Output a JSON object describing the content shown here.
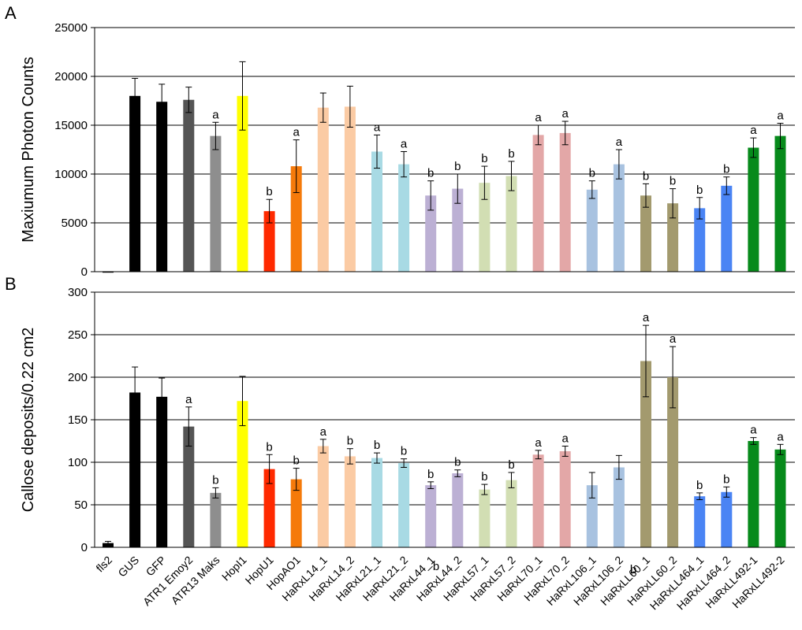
{
  "chart_data": [
    {
      "type": "bar",
      "panel_label": "A",
      "ylabel": "Maxiumum Photon Counts",
      "ylim": [
        0,
        25000
      ],
      "yticks": [
        "0",
        "5000",
        "10000",
        "15000",
        "20000",
        "25000"
      ],
      "grid": true,
      "categories": [
        "fls2",
        "GUS",
        "GFP",
        "ATR1 Emoy2",
        "ATR13 Maks",
        "HopI1",
        "HopU1",
        "HopAO1",
        "HaRxL14_1",
        "HaRxL14_2",
        "HaRxL21_1",
        "HaRxL21_2",
        "HaRxL44_1",
        "HaRxL44_2",
        "HaRxL57_1",
        "HaRxL57_2",
        "HaRxL70_1",
        "HaRxL70_2",
        "HaRxL106_1",
        "HaRxL106_2",
        "HaRxLL60_1",
        "HaRxLL60_2",
        "HaRxLL464_1",
        "HaRxLL464_2",
        "HaRxLL492-1",
        "HaRxLL492-2"
      ],
      "values": [
        0,
        18000,
        17400,
        17600,
        13900,
        18000,
        6200,
        10800,
        16800,
        16900,
        12300,
        11000,
        7800,
        8500,
        9100,
        9800,
        14000,
        14200,
        8400,
        11000,
        7800,
        7000,
        6500,
        8800,
        12700,
        13900
      ],
      "errors": [
        0,
        1800,
        1800,
        1300,
        1400,
        3500,
        1200,
        2700,
        1500,
        2100,
        1700,
        1300,
        1500,
        1500,
        1700,
        1500,
        1000,
        1200,
        900,
        1500,
        1200,
        1500,
        1100,
        900,
        1000,
        1300
      ],
      "labels": [
        "",
        "",
        "",
        "",
        "a",
        "",
        "b",
        "a",
        "",
        "",
        "a",
        "a",
        "b",
        "b",
        "b",
        "b",
        "a",
        "a",
        "b",
        "a",
        "b",
        "b",
        "b",
        "b",
        "a",
        "a"
      ],
      "colors": [
        "#000000",
        "#000000",
        "#000000",
        "#555555",
        "#8e8e8e",
        "#ffff00",
        "#ff2a00",
        "#f57a0a",
        "#fbcba4",
        "#fbcba4",
        "#a8dae4",
        "#a8dae4",
        "#bcb0d4",
        "#bcb0d4",
        "#d2deb3",
        "#d2deb3",
        "#e3a7a7",
        "#e3a7a7",
        "#a8c2e0",
        "#a8c2e0",
        "#a39a6e",
        "#a39a6e",
        "#4a84f4",
        "#4a84f4",
        "#078a1b",
        "#078a1b"
      ]
    },
    {
      "type": "bar",
      "panel_label": "B",
      "ylabel": "Callose deposits/0.22 cm2",
      "ylim": [
        0,
        300
      ],
      "yticks": [
        "0",
        "50",
        "100",
        "150",
        "200",
        "250",
        "300"
      ],
      "grid": true,
      "categories": [
        "fls2",
        "GUS",
        "GFP",
        "ATR1 Emoy2",
        "ATR13 Maks",
        "HopI1",
        "HopU1",
        "HopAO1",
        "HaRxL14_1",
        "HaRxL14_2",
        "HaRxL21_1",
        "HaRxL21_2",
        "HaRxL44_1",
        "HaRxL44_2",
        "HaRxL57_1",
        "HaRxL57_2",
        "HaRxL70_1",
        "HaRxL70_2",
        "HaRxL106_1",
        "HaRxL106_2",
        "HaRxLL60_1",
        "HaRxLL60_2",
        "HaRxLL464_1",
        "HaRxLL464_2",
        "HaRxLL492-1",
        "HaRxLL492-2"
      ],
      "values": [
        5,
        182,
        177,
        142,
        64,
        172,
        92,
        80,
        119,
        107,
        105,
        99,
        73,
        87,
        68,
        79,
        109,
        113,
        73,
        94,
        219,
        200,
        60,
        65,
        125,
        115
      ],
      "errors": [
        2,
        30,
        22,
        23,
        6,
        29,
        17,
        13,
        8,
        9,
        6,
        5,
        4,
        4,
        6,
        9,
        5,
        6,
        15,
        14,
        42,
        36,
        4,
        6,
        4,
        6
      ],
      "labels": [
        "",
        "",
        "",
        "a",
        "b",
        "",
        "b",
        "b",
        "a",
        "b",
        "b",
        "b",
        "b",
        "b",
        "b",
        "b",
        "a",
        "a",
        "",
        "",
        "a",
        "a",
        "b",
        "b",
        "a",
        "a"
      ],
      "colors": [
        "#000000",
        "#000000",
        "#000000",
        "#555555",
        "#8e8e8e",
        "#ffff00",
        "#ff2a00",
        "#f57a0a",
        "#fbcba4",
        "#fbcba4",
        "#a8dae4",
        "#a8dae4",
        "#bcb0d4",
        "#bcb0d4",
        "#d2deb3",
        "#d2deb3",
        "#e3a7a7",
        "#e3a7a7",
        "#a8c2e0",
        "#a8c2e0",
        "#a39a6e",
        "#a39a6e",
        "#4a84f4",
        "#4a84f4",
        "#078a1b",
        "#078a1b"
      ]
    }
  ],
  "stray_labels": [
    "b",
    "b"
  ],
  "x_tick_labels": [
    "fls2",
    "GUS",
    "GFP",
    "ATR1 Emoy2",
    "ATR13 Maks",
    "HopI1",
    "HopU1",
    "HopAO1",
    "HaRxL14_1",
    "HaRxL14_2",
    "HaRxL21_1",
    "HaRxL21_2",
    "HaRxL44_1",
    "HaRxL44_2",
    "HaRxL57_1",
    "HaRxL57_2",
    "HaRxL70_1",
    "HaRxL70_2",
    "HaRxL106_1",
    "HaRxL106_2",
    "HaRxLL60_1",
    "HaRxLL60_2",
    "HaRxLL464_1",
    "HaRxLL464_2",
    "HaRxLL492-1",
    "HaRxLL492-2"
  ]
}
